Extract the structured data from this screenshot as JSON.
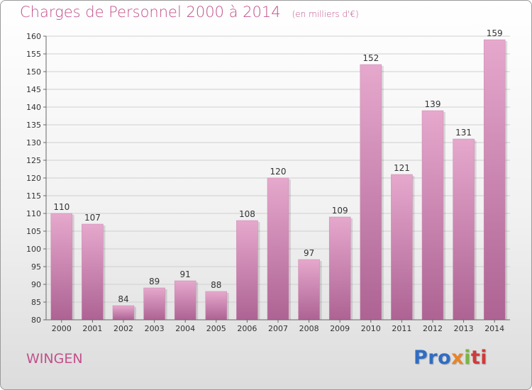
{
  "header": {
    "title": "Charges de Personnel 2000 à 2014",
    "subtitle": "(en milliers d'€)"
  },
  "footer": {
    "commune": "WINGEN",
    "logo": [
      "Pro",
      "x",
      "i",
      "ti"
    ]
  },
  "colors": {
    "title": "#c2508b",
    "bar_top": "#e6a8cd",
    "bar_bottom": "#ad6393",
    "grid": "#cfcfcf"
  },
  "chart_data": {
    "type": "bar",
    "title": "Charges de Personnel 2000 à 2014",
    "subtitle": "(en milliers d'€)",
    "categories": [
      "2000",
      "2001",
      "2002",
      "2003",
      "2004",
      "2005",
      "2006",
      "2007",
      "2008",
      "2009",
      "2010",
      "2011",
      "2012",
      "2013",
      "2014"
    ],
    "values": [
      110,
      107,
      84,
      89,
      91,
      88,
      108,
      120,
      97,
      109,
      152,
      121,
      139,
      131,
      159
    ],
    "ylim": [
      80,
      160
    ],
    "yticks": [
      80,
      85,
      90,
      95,
      100,
      105,
      110,
      115,
      120,
      125,
      130,
      135,
      140,
      145,
      150,
      155,
      160
    ],
    "grid": true
  }
}
